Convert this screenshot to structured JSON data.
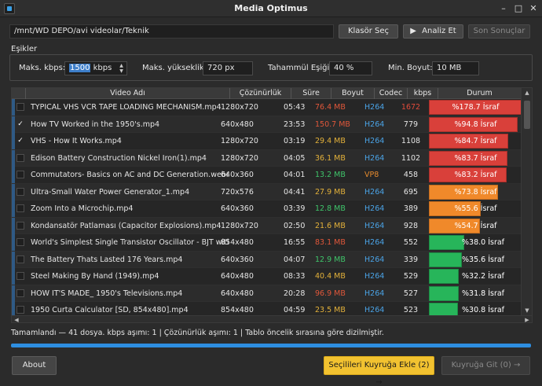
{
  "window": {
    "title": "Media Optimus",
    "minimize": "–",
    "maximize": "□",
    "close": "✕"
  },
  "toolbar": {
    "path": "/mnt/WD DEPO/avi videolar/Teknik",
    "choose_folder": "Klasör Seç",
    "analyze": "Analiz Et",
    "analyze_icon": "▶",
    "last_results": "Son Sonuçlar"
  },
  "thresholds": {
    "group_label": "Eşikler",
    "max_kbps_label": "Maks. kbps:",
    "max_kbps_value": "1500",
    "max_kbps_unit": " kbps",
    "max_height_label": "Maks. yükseklik:",
    "max_height_value": "720 px",
    "tolerance_label": "Tahammül Eşiği:",
    "tolerance_value": "40 %",
    "min_size_label": "Min. Boyut:",
    "min_size_value": "10 MB"
  },
  "table": {
    "columns": {
      "name": "Video Adı",
      "resolution": "Çözünürlük",
      "duration": "Süre",
      "size": "Boyut",
      "codec": "Codec",
      "kbps": "kbps",
      "status": "Durum"
    },
    "rows": [
      {
        "checked": "",
        "name": "TYPICAL VHS VCR TAPE LOADING MECHANISM.mp4",
        "resolution": "1280x720",
        "duration": "05:43",
        "size": "76.4 MB",
        "codec": "H264",
        "kbps": "1672",
        "status": "%178.7 İsraf",
        "pct": 178.7
      },
      {
        "checked": "✓",
        "name": "How TV Worked in the 1950's.mp4",
        "resolution": "640x480",
        "duration": "23:53",
        "size": "150.7 MB",
        "codec": "H264",
        "kbps": "779",
        "status": "%94.8 İsraf",
        "pct": 94.8
      },
      {
        "checked": "✓",
        "name": "VHS - How It Works.mp4",
        "resolution": "1280x720",
        "duration": "03:19",
        "size": "29.4 MB",
        "codec": "H264",
        "kbps": "1108",
        "status": "%84.7 İsraf",
        "pct": 84.7
      },
      {
        "checked": "",
        "name": "Edison Battery Construction Nickel Iron(1).mp4",
        "resolution": "1280x720",
        "duration": "04:05",
        "size": "36.1 MB",
        "codec": "H264",
        "kbps": "1102",
        "status": "%83.7 İsraf",
        "pct": 83.7
      },
      {
        "checked": "",
        "name": "Commutators- Basics on AC and DC Generation.webm",
        "resolution": "640x360",
        "duration": "04:01",
        "size": "13.2 MB",
        "codec": "VP8",
        "kbps": "458",
        "status": "%83.2 İsraf",
        "pct": 83.2
      },
      {
        "checked": "",
        "name": "Ultra-Small Water Power Generator_1.mp4",
        "resolution": "720x576",
        "duration": "04:41",
        "size": "27.9 MB",
        "codec": "H264",
        "kbps": "695",
        "status": "%73.8 İsraf",
        "pct": 73.8
      },
      {
        "checked": "",
        "name": "Zoom Into a Microchip.mp4",
        "resolution": "640x360",
        "duration": "03:39",
        "size": "12.8 MB",
        "codec": "H264",
        "kbps": "389",
        "status": "%55.6 İsraf",
        "pct": 55.6
      },
      {
        "checked": "",
        "name": "Kondansatör Patlaması (Capacitor Explosions).mp4",
        "resolution": "1280x720",
        "duration": "02:50",
        "size": "21.6 MB",
        "codec": "H264",
        "kbps": "928",
        "status": "%54.7 İsraf",
        "pct": 54.7
      },
      {
        "checked": "",
        "name": "World's Simplest Single Transistor Oscillator - BJT with...",
        "resolution": "854x480",
        "duration": "16:55",
        "size": "83.1 MB",
        "codec": "H264",
        "kbps": "552",
        "status": "%38.0 İsraf",
        "pct": 38.0
      },
      {
        "checked": "",
        "name": "The Battery Thats Lasted 176 Years.mp4",
        "resolution": "640x360",
        "duration": "04:07",
        "size": "12.9 MB",
        "codec": "H264",
        "kbps": "339",
        "status": "%35.6 İsraf",
        "pct": 35.6
      },
      {
        "checked": "",
        "name": "Steel Making By Hand (1949).mp4",
        "resolution": "640x480",
        "duration": "08:33",
        "size": "40.4 MB",
        "codec": "H264",
        "kbps": "529",
        "status": "%32.2 İsraf",
        "pct": 32.2
      },
      {
        "checked": "",
        "name": "HOW IT'S MADE_ 1950's Televisions.mp4",
        "resolution": "640x480",
        "duration": "20:28",
        "size": "96.9 MB",
        "codec": "H264",
        "kbps": "527",
        "status": "%31.8 İsraf",
        "pct": 31.8
      },
      {
        "checked": "",
        "name": "1950 Curta Calculator [SD, 854x480].mp4",
        "resolution": "854x480",
        "duration": "04:59",
        "size": "23.5 MB",
        "codec": "H264",
        "kbps": "523",
        "status": "%30.8 İsraf",
        "pct": 30.8
      }
    ]
  },
  "status": {
    "text": "Tamamlandı — 41 dosya.  kbps aşımı: 1  |  Çözünürlük aşımı: 1  |  Tablo öncelik sırasına göre dizilmiştir.",
    "progress": 1.0
  },
  "footer": {
    "about": "About",
    "add_to_queue": "Seçilileri Kuyruğa Ekle (2) →",
    "go_to_queue": "Kuyruğa Git (0) →"
  },
  "colors": {
    "red": "#d9403a",
    "orange": "#f0892a",
    "green": "#27b55a",
    "size_red": "#e0573a",
    "size_yellow": "#e3b13a",
    "size_green": "#3fc46a",
    "codec_blue": "#4aa3e6",
    "codec_orange": "#e58a2e",
    "kbps_red": "#e04a3a",
    "accent": "#f2c230"
  }
}
